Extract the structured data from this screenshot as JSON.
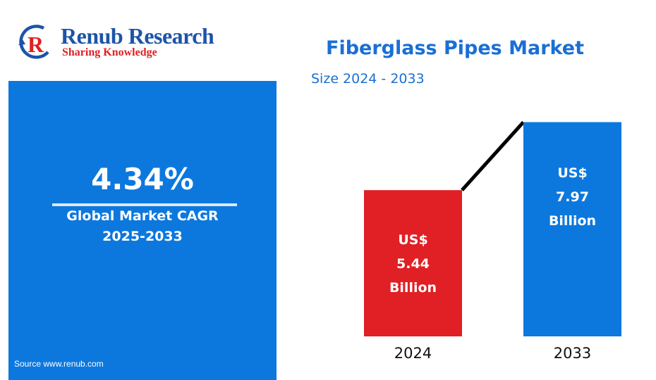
{
  "brand": {
    "name": "Renub Research",
    "tagline": "Sharing Knowledge"
  },
  "cagr": {
    "value": "4.34%",
    "label": "Global Market CAGR",
    "period": "2025-2033"
  },
  "source": "Source  www.renub.com",
  "colors": {
    "panel": "#0c78de",
    "bar_2024": "#e02025",
    "bar_2033": "#0c78de",
    "title": "#1a6fd4"
  },
  "chart_data": {
    "type": "bar",
    "title": "Fiberglass Pipes Market",
    "subtitle": "Size 2024 - 2033",
    "categories": [
      "2024",
      "2033"
    ],
    "values": [
      5.44,
      7.97
    ],
    "value_labels": [
      [
        "US$",
        "5.44",
        "Billion"
      ],
      [
        "US$",
        "7.97",
        "Billion"
      ]
    ],
    "unit": "US$ Billion",
    "connector_line": true,
    "grid": false
  }
}
